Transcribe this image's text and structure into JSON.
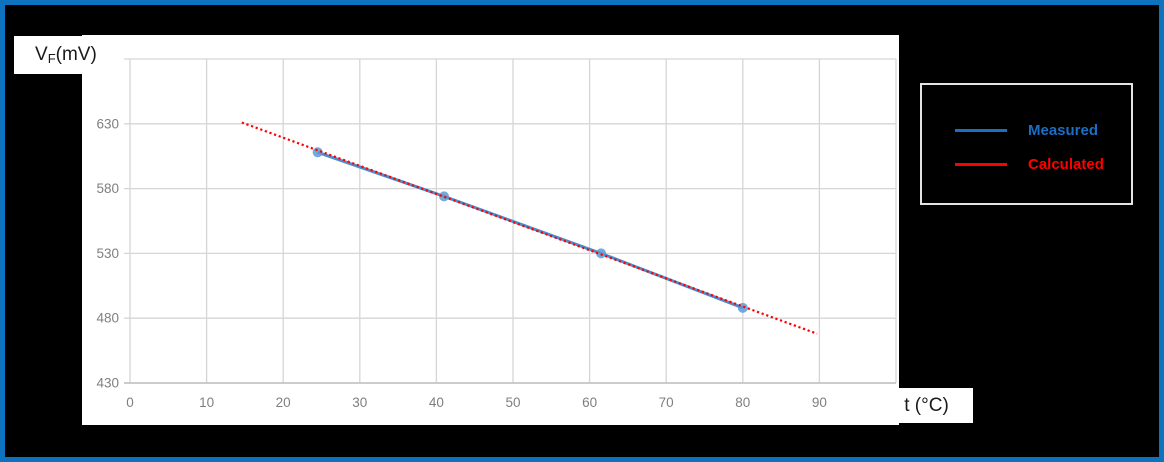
{
  "frame": {
    "background": "#000000",
    "border_color": "#0d73be"
  },
  "axes": {
    "y_title_main": "V",
    "y_title_sub": "F",
    "y_title_unit": " (mV)",
    "x_title": "t (°C)"
  },
  "legend": {
    "items": [
      {
        "label": "Measured",
        "color": "#1b6ec2",
        "swatch_color": "#1b6ec2",
        "line_style": "solid"
      },
      {
        "label": "Calculated",
        "color": "#ff0000",
        "swatch_color": "#ff0000",
        "line_style": "solid"
      }
    ]
  },
  "chart_data": {
    "type": "line",
    "title": "",
    "xlabel": "t (°C)",
    "ylabel": "VF (mV)",
    "xlim": [
      0,
      100
    ],
    "ylim": [
      430,
      680
    ],
    "x_ticks": [
      0,
      10,
      20,
      30,
      40,
      50,
      60,
      70,
      80,
      90
    ],
    "y_ticks": [
      430,
      480,
      530,
      580,
      630
    ],
    "grid": true,
    "legend_position": "right-outside",
    "series": [
      {
        "name": "Measured",
        "style": "solid-with-markers",
        "color": "#4e8ccb",
        "marker_color": "#5b9bd5",
        "points": [
          [
            24.5,
            608
          ],
          [
            41,
            574
          ],
          [
            61.5,
            530
          ],
          [
            80,
            488
          ]
        ]
      },
      {
        "name": "Calculated",
        "style": "dotted",
        "color": "#ff0000",
        "points": [
          [
            14.6,
            631
          ],
          [
            89.7,
            468
          ]
        ]
      }
    ],
    "colors": {
      "grid": "#d6d6d6",
      "axis_line": "#bfbfbf",
      "tick_label": "#7f7f7f"
    }
  }
}
